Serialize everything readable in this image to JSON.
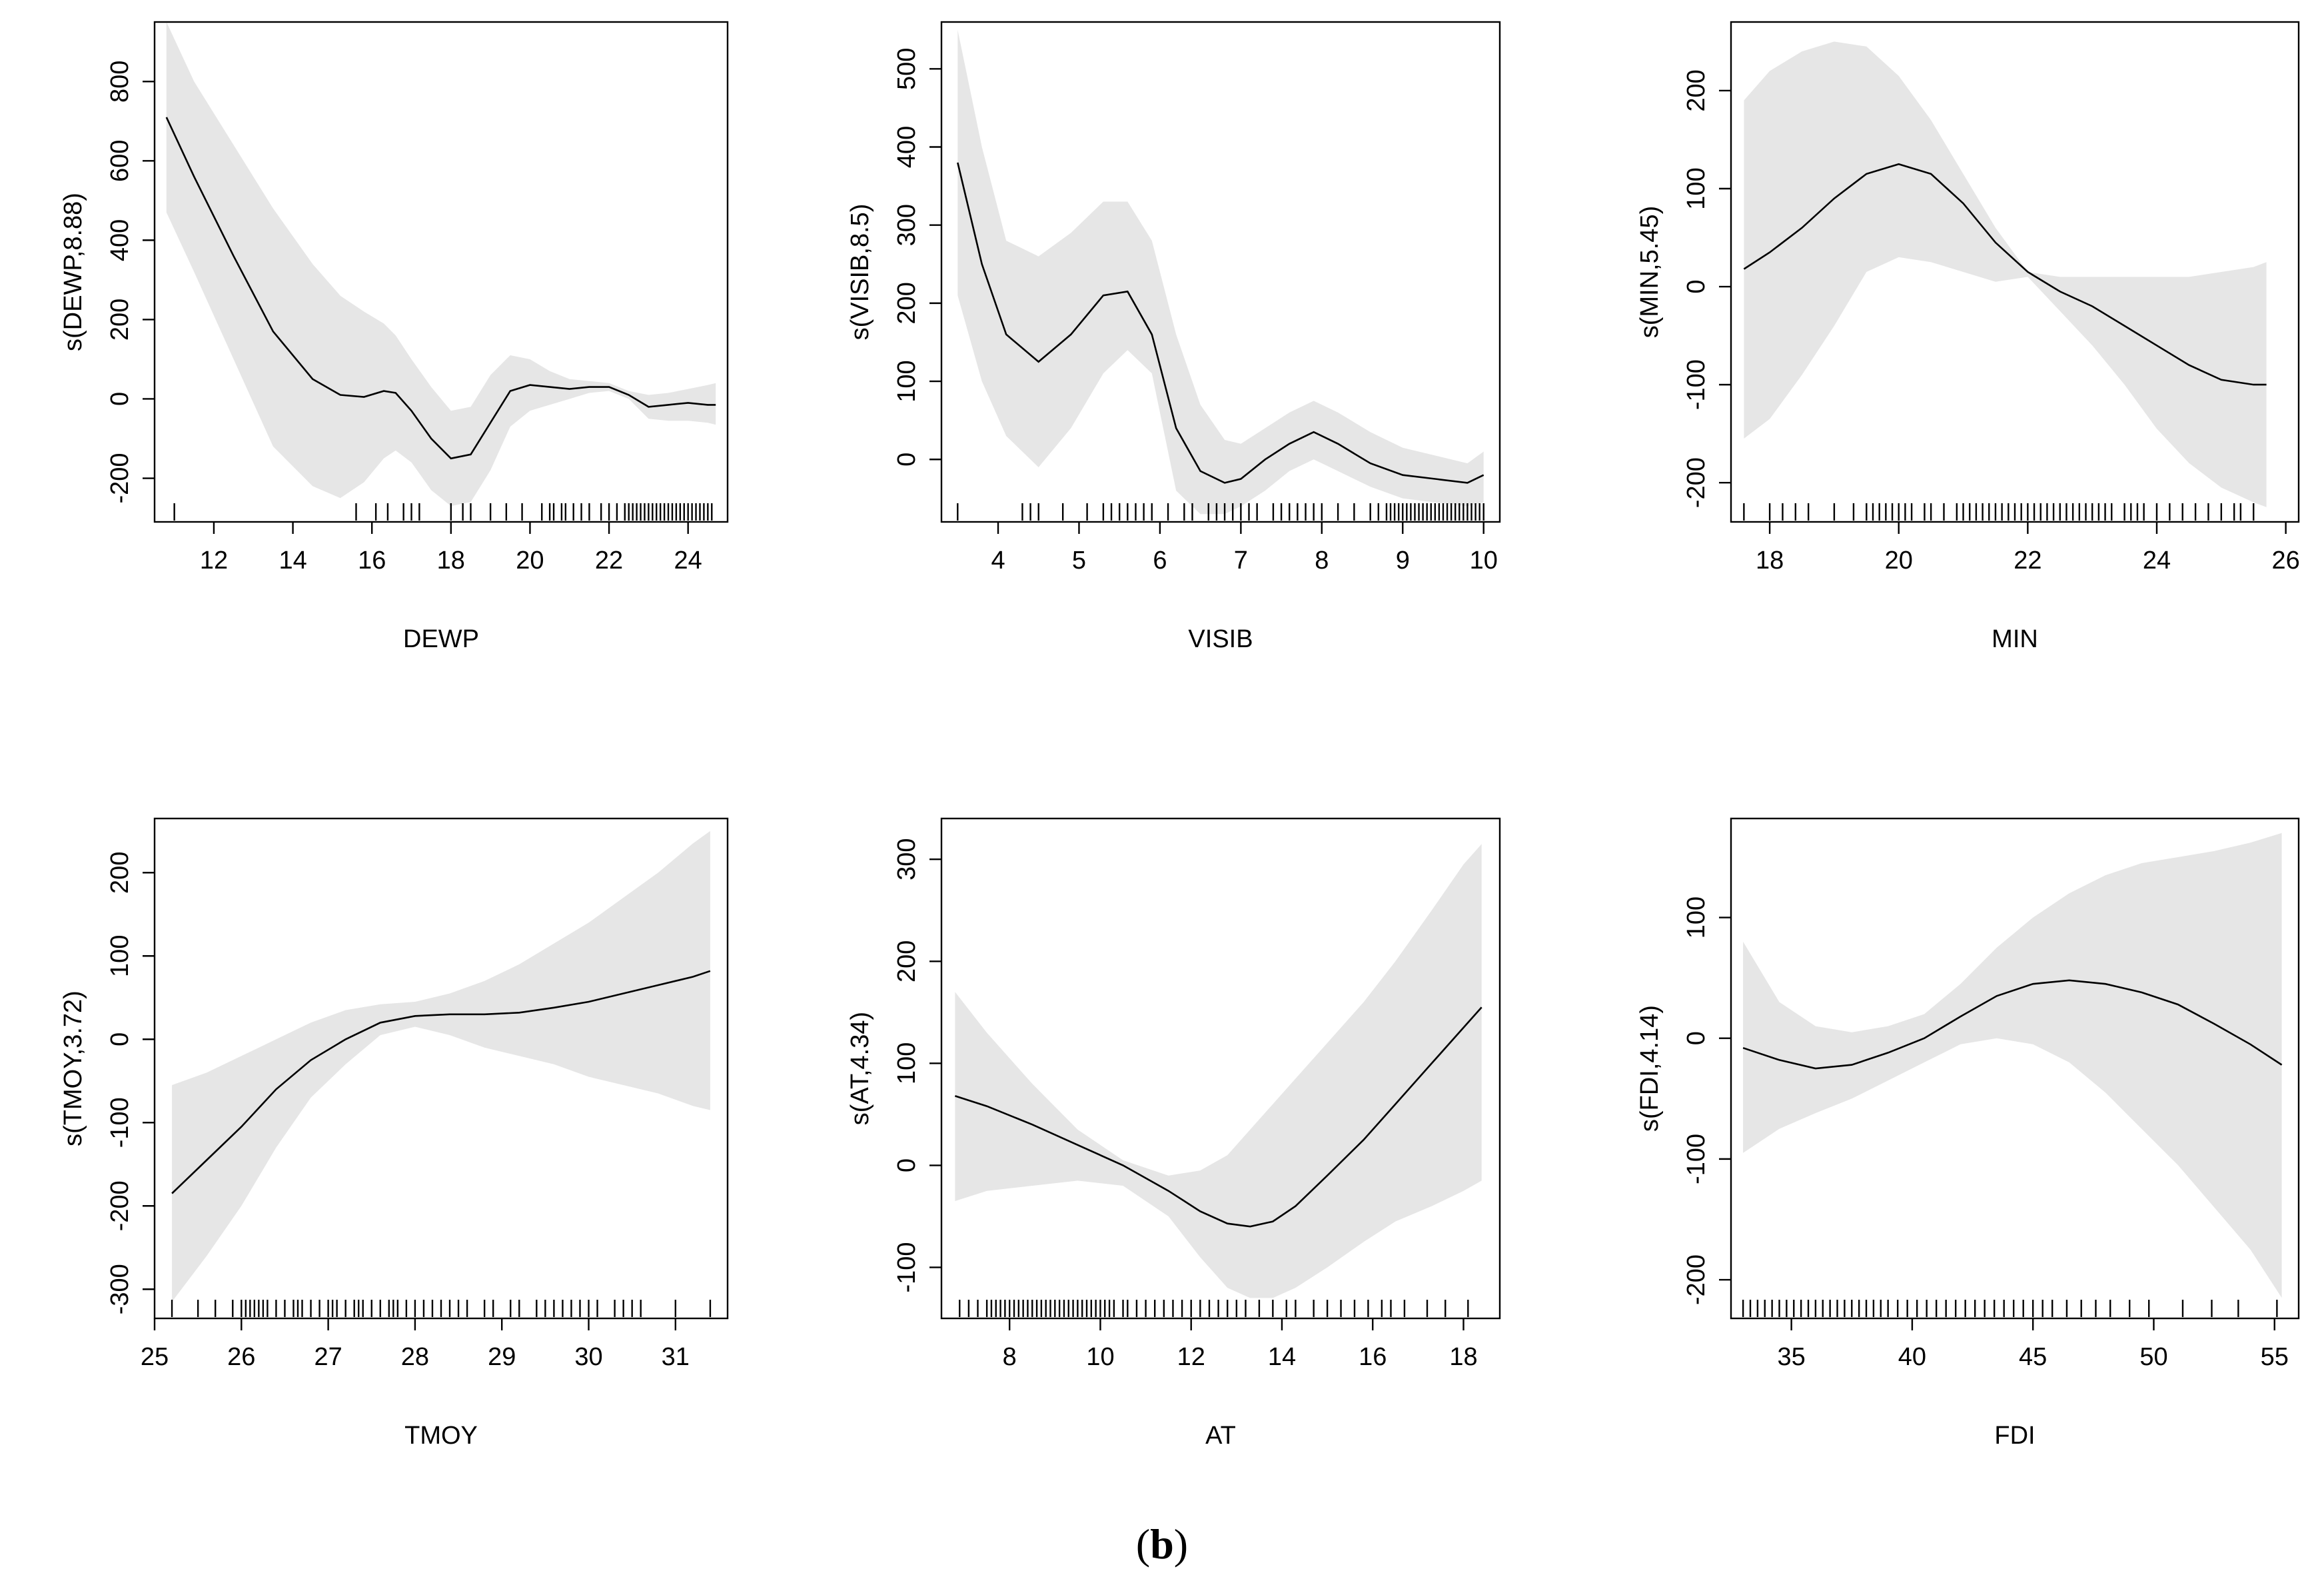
{
  "caption": {
    "open": "(",
    "label": "b",
    "close": ")"
  },
  "chart_data": [
    {
      "type": "line",
      "title": "",
      "xlabel": "DEWP",
      "ylabel": "s(DEWP,8.88)",
      "xlim": [
        10.5,
        25.0
      ],
      "ylim": [
        -310,
        950
      ],
      "xticks": [
        12,
        14,
        16,
        18,
        20,
        22,
        24
      ],
      "yticks": [
        -200,
        0,
        200,
        400,
        600,
        800
      ],
      "x": [
        10.8,
        11.5,
        12.5,
        13.5,
        14.5,
        15.2,
        15.8,
        16.3,
        16.6,
        17.0,
        17.5,
        18.0,
        18.5,
        19.0,
        19.5,
        20.0,
        20.5,
        21.0,
        21.5,
        22.0,
        22.5,
        23.0,
        23.5,
        24.0,
        24.5,
        24.7
      ],
      "y": [
        710,
        560,
        360,
        170,
        50,
        10,
        5,
        20,
        15,
        -30,
        -100,
        -150,
        -140,
        -60,
        20,
        35,
        30,
        25,
        30,
        30,
        10,
        -20,
        -15,
        -10,
        -15,
        -15
      ],
      "upper": [
        950,
        800,
        640,
        480,
        340,
        260,
        220,
        190,
        160,
        100,
        30,
        -30,
        -20,
        60,
        110,
        100,
        70,
        50,
        45,
        40,
        20,
        10,
        15,
        25,
        35,
        40
      ],
      "lower": [
        470,
        320,
        100,
        -120,
        -220,
        -250,
        -210,
        -150,
        -130,
        -160,
        -230,
        -270,
        -260,
        -180,
        -70,
        -30,
        -15,
        0,
        15,
        20,
        0,
        -50,
        -55,
        -55,
        -60,
        -65
      ],
      "rug": [
        11.0,
        15.6,
        16.1,
        16.4,
        16.8,
        17.0,
        17.2,
        18.0,
        18.3,
        18.5,
        19.0,
        19.4,
        19.8,
        20.3,
        20.5,
        20.6,
        20.8,
        20.9,
        21.1,
        21.3,
        21.5,
        21.8,
        22.0,
        22.2,
        22.4,
        22.5,
        22.6,
        22.7,
        22.8,
        22.9,
        23.0,
        23.1,
        23.2,
        23.3,
        23.4,
        23.5,
        23.6,
        23.7,
        23.8,
        23.9,
        24.0,
        24.1,
        24.2,
        24.3,
        24.4,
        24.5,
        24.6
      ]
    },
    {
      "type": "line",
      "title": "",
      "xlabel": "VISIB",
      "ylabel": "s(VISIB,8.5)",
      "xlim": [
        3.3,
        10.2
      ],
      "ylim": [
        -80,
        560
      ],
      "xticks": [
        4,
        5,
        6,
        7,
        8,
        9,
        10
      ],
      "yticks": [
        0,
        100,
        200,
        300,
        400,
        500
      ],
      "x": [
        3.5,
        3.8,
        4.1,
        4.5,
        4.9,
        5.3,
        5.6,
        5.9,
        6.2,
        6.5,
        6.8,
        7.0,
        7.3,
        7.6,
        7.9,
        8.2,
        8.6,
        9.0,
        9.4,
        9.8,
        10.0
      ],
      "y": [
        380,
        250,
        160,
        125,
        160,
        210,
        215,
        160,
        40,
        -15,
        -30,
        -25,
        0,
        20,
        35,
        20,
        -5,
        -20,
        -25,
        -30,
        -20
      ],
      "upper": [
        550,
        400,
        280,
        260,
        290,
        330,
        330,
        280,
        160,
        70,
        25,
        20,
        40,
        60,
        75,
        60,
        35,
        15,
        5,
        -5,
        10
      ],
      "lower": [
        210,
        100,
        30,
        -10,
        40,
        110,
        140,
        110,
        -40,
        -70,
        -70,
        -60,
        -40,
        -15,
        0,
        -15,
        -35,
        -50,
        -55,
        -60,
        -55
      ],
      "rug": [
        3.5,
        4.3,
        4.4,
        4.5,
        4.8,
        5.1,
        5.3,
        5.4,
        5.5,
        5.6,
        5.7,
        5.8,
        5.9,
        6.1,
        6.3,
        6.4,
        6.6,
        6.7,
        6.8,
        6.9,
        7.0,
        7.1,
        7.2,
        7.4,
        7.5,
        7.6,
        7.7,
        7.8,
        7.9,
        8.0,
        8.2,
        8.4,
        8.6,
        8.7,
        8.8,
        8.85,
        8.9,
        8.95,
        9.0,
        9.05,
        9.1,
        9.15,
        9.2,
        9.25,
        9.3,
        9.35,
        9.4,
        9.45,
        9.5,
        9.55,
        9.6,
        9.65,
        9.7,
        9.75,
        9.8,
        9.85,
        9.9,
        9.95,
        10.0
      ]
    },
    {
      "type": "line",
      "title": "",
      "xlabel": "MIN",
      "ylabel": "s(MIN,5.45)",
      "xlim": [
        17.4,
        26.2
      ],
      "ylim": [
        -240,
        270
      ],
      "xticks": [
        18,
        20,
        22,
        24,
        26
      ],
      "yticks": [
        -200,
        -100,
        0,
        100,
        200
      ],
      "x": [
        17.6,
        18.0,
        18.5,
        19.0,
        19.5,
        20.0,
        20.5,
        21.0,
        21.5,
        22.0,
        22.5,
        23.0,
        23.5,
        24.0,
        24.5,
        25.0,
        25.5,
        25.7
      ],
      "y": [
        18,
        35,
        60,
        90,
        115,
        125,
        115,
        85,
        45,
        15,
        -5,
        -20,
        -40,
        -60,
        -80,
        -95,
        -100,
        -100
      ],
      "upper": [
        190,
        220,
        240,
        250,
        245,
        215,
        170,
        115,
        60,
        15,
        10,
        10,
        10,
        10,
        10,
        15,
        20,
        25
      ],
      "lower": [
        -155,
        -135,
        -90,
        -40,
        15,
        30,
        25,
        15,
        5,
        10,
        -25,
        -60,
        -100,
        -145,
        -180,
        -205,
        -220,
        -225
      ],
      "rug": [
        17.6,
        18.0,
        18.2,
        18.4,
        18.6,
        19.0,
        19.3,
        19.5,
        19.6,
        19.7,
        19.8,
        19.9,
        20.0,
        20.1,
        20.2,
        20.4,
        20.5,
        20.7,
        20.9,
        21.0,
        21.1,
        21.2,
        21.3,
        21.4,
        21.5,
        21.6,
        21.7,
        21.8,
        21.9,
        22.0,
        22.1,
        22.2,
        22.3,
        22.4,
        22.5,
        22.6,
        22.7,
        22.8,
        22.9,
        23.0,
        23.1,
        23.2,
        23.3,
        23.5,
        23.6,
        23.7,
        23.8,
        24.0,
        24.2,
        24.4,
        24.6,
        24.8,
        25.0,
        25.2,
        25.3,
        25.5
      ]
    },
    {
      "type": "line",
      "title": "",
      "xlabel": "TMOY",
      "ylabel": "s(TMOY,3.72)",
      "xlim": [
        25.0,
        31.6
      ],
      "ylim": [
        -335,
        265
      ],
      "xticks": [
        25,
        26,
        27,
        28,
        29,
        30,
        31
      ],
      "yticks": [
        -300,
        -200,
        -100,
        0,
        100,
        200
      ],
      "x": [
        25.2,
        25.6,
        26.0,
        26.4,
        26.8,
        27.2,
        27.6,
        28.0,
        28.4,
        28.8,
        29.2,
        29.6,
        30.0,
        30.4,
        30.8,
        31.2,
        31.4
      ],
      "y": [
        -185,
        -145,
        -105,
        -60,
        -25,
        0,
        20,
        28,
        30,
        30,
        32,
        38,
        45,
        55,
        65,
        75,
        82
      ],
      "upper": [
        -55,
        -40,
        -20,
        0,
        20,
        35,
        42,
        45,
        55,
        70,
        90,
        115,
        140,
        170,
        200,
        235,
        250
      ],
      "lower": [
        -315,
        -260,
        -200,
        -130,
        -70,
        -30,
        5,
        15,
        5,
        -10,
        -20,
        -30,
        -45,
        -55,
        -65,
        -80,
        -85
      ],
      "rug": [
        25.2,
        25.5,
        25.7,
        25.9,
        26.0,
        26.05,
        26.1,
        26.15,
        26.2,
        26.25,
        26.3,
        26.4,
        26.5,
        26.6,
        26.65,
        26.7,
        26.8,
        26.9,
        27.0,
        27.05,
        27.1,
        27.2,
        27.3,
        27.35,
        27.4,
        27.5,
        27.6,
        27.7,
        27.75,
        27.8,
        27.9,
        28.0,
        28.1,
        28.2,
        28.3,
        28.4,
        28.5,
        28.6,
        28.8,
        28.9,
        29.1,
        29.2,
        29.4,
        29.5,
        29.6,
        29.7,
        29.8,
        29.9,
        30.0,
        30.1,
        30.3,
        30.4,
        30.5,
        30.6,
        31.0,
        31.4
      ]
    },
    {
      "type": "line",
      "title": "",
      "xlabel": "AT",
      "ylabel": "s(AT,4.34)",
      "xlim": [
        6.5,
        18.8
      ],
      "ylim": [
        -150,
        340
      ],
      "xticks": [
        8,
        10,
        12,
        14,
        16,
        18
      ],
      "yticks": [
        -100,
        0,
        100,
        200,
        300
      ],
      "x": [
        6.8,
        7.5,
        8.5,
        9.5,
        10.5,
        11.5,
        12.2,
        12.8,
        13.3,
        13.8,
        14.3,
        15.0,
        15.8,
        16.5,
        17.3,
        18.0,
        18.4
      ],
      "y": [
        68,
        58,
        40,
        20,
        0,
        -25,
        -45,
        -57,
        -60,
        -55,
        -40,
        -10,
        25,
        60,
        100,
        135,
        155
      ],
      "upper": [
        170,
        130,
        80,
        35,
        5,
        -10,
        -5,
        10,
        35,
        60,
        85,
        120,
        160,
        200,
        250,
        295,
        315
      ],
      "lower": [
        -35,
        -25,
        -20,
        -15,
        -20,
        -50,
        -90,
        -120,
        -130,
        -130,
        -120,
        -100,
        -75,
        -55,
        -40,
        -25,
        -15
      ],
      "rug": [
        6.9,
        7.1,
        7.3,
        7.5,
        7.6,
        7.7,
        7.8,
        7.9,
        8.0,
        8.1,
        8.2,
        8.3,
        8.4,
        8.5,
        8.6,
        8.7,
        8.8,
        8.9,
        9.0,
        9.1,
        9.2,
        9.3,
        9.4,
        9.5,
        9.6,
        9.7,
        9.8,
        9.9,
        10.0,
        10.1,
        10.2,
        10.3,
        10.5,
        10.6,
        10.8,
        11.0,
        11.2,
        11.4,
        11.6,
        11.8,
        12.0,
        12.2,
        12.4,
        12.6,
        12.8,
        13.0,
        13.2,
        13.5,
        13.8,
        14.1,
        14.3,
        14.7,
        15.0,
        15.3,
        15.6,
        15.9,
        16.2,
        16.4,
        16.7,
        17.2,
        17.6,
        18.1
      ]
    },
    {
      "type": "line",
      "title": "",
      "xlabel": "FDI",
      "ylabel": "s(FDI,4.14)",
      "xlim": [
        32.5,
        56.0
      ],
      "ylim": [
        -232,
        182
      ],
      "xticks": [
        35,
        40,
        45,
        50,
        55
      ],
      "yticks": [
        -200,
        -100,
        0,
        100
      ],
      "x": [
        33.0,
        34.5,
        36.0,
        37.5,
        39.0,
        40.5,
        42.0,
        43.5,
        45.0,
        46.5,
        48.0,
        49.5,
        51.0,
        52.5,
        54.0,
        55.3
      ],
      "y": [
        -8,
        -18,
        -25,
        -22,
        -12,
        0,
        18,
        35,
        45,
        48,
        45,
        38,
        28,
        12,
        -5,
        -22
      ],
      "upper": [
        80,
        30,
        10,
        5,
        10,
        20,
        45,
        75,
        100,
        120,
        135,
        145,
        150,
        155,
        162,
        170
      ],
      "lower": [
        -95,
        -75,
        -62,
        -50,
        -35,
        -20,
        -5,
        0,
        -5,
        -20,
        -45,
        -75,
        -105,
        -140,
        -175,
        -215
      ],
      "rug": [
        33.0,
        33.3,
        33.6,
        33.9,
        34.2,
        34.5,
        34.8,
        35.1,
        35.4,
        35.7,
        36.0,
        36.3,
        36.6,
        36.9,
        37.2,
        37.5,
        37.8,
        38.1,
        38.4,
        38.7,
        39.0,
        39.4,
        39.8,
        40.2,
        40.6,
        41.0,
        41.4,
        41.8,
        42.2,
        42.6,
        43.0,
        43.4,
        43.8,
        44.2,
        44.6,
        45.0,
        45.4,
        45.8,
        46.4,
        47.0,
        47.6,
        48.2,
        49.0,
        49.8,
        51.2,
        52.4,
        53.5,
        55.1
      ]
    }
  ]
}
